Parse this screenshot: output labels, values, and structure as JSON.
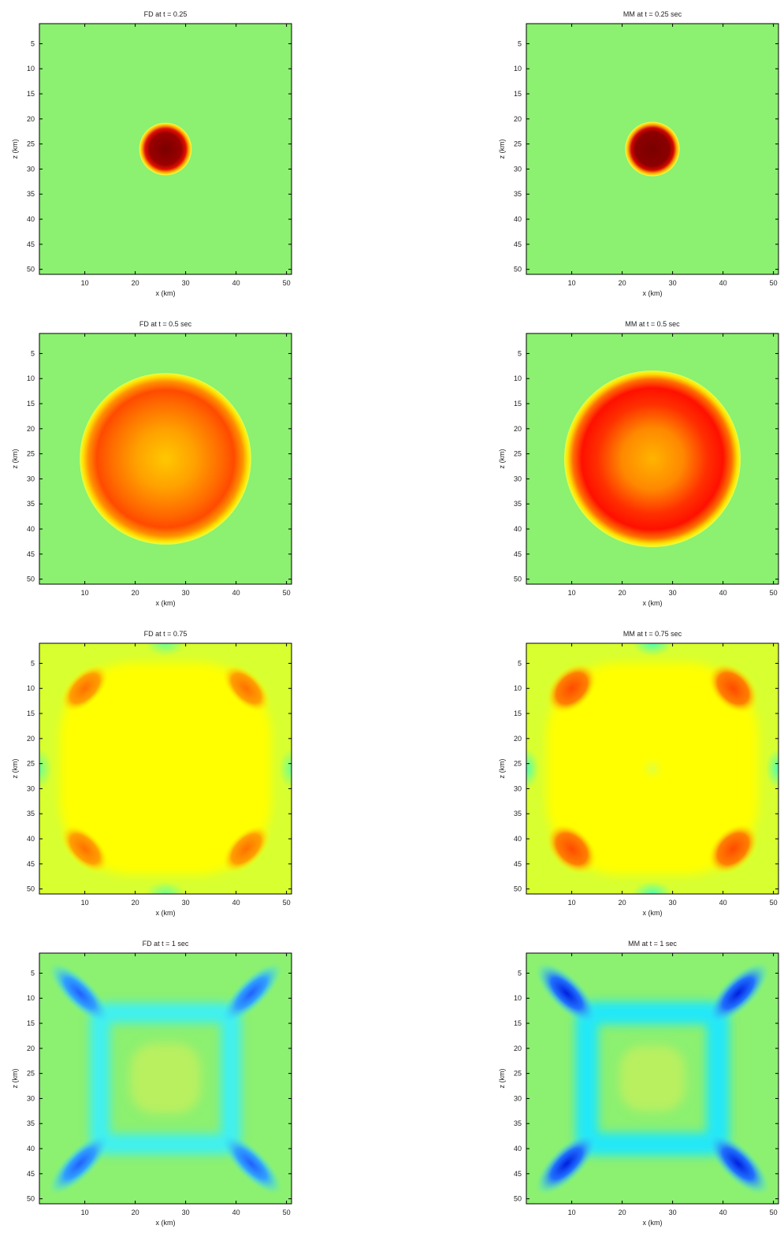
{
  "chart_data": [
    {
      "type": "heatmap",
      "title": "FD at t = 0.25",
      "xlabel": "x (km)",
      "ylabel": "z (km)",
      "xticks": [
        10,
        20,
        30,
        40,
        50
      ],
      "yticks": [
        5,
        10,
        15,
        20,
        25,
        30,
        35,
        40,
        45,
        50
      ],
      "xlim": [
        1,
        51
      ],
      "ylim": [
        1,
        51
      ],
      "blobs": [
        {
          "shape": "circle",
          "cx": 26,
          "cy": 26,
          "r": 5.2,
          "rx": 5.2,
          "ry": 5.2,
          "stops": [
            [
              0,
              "#7a0000"
            ],
            [
              0.6,
              "#9a0000"
            ],
            [
              0.78,
              "#e01000"
            ],
            [
              0.9,
              "#ffb000"
            ],
            [
              1,
              "#ffff40"
            ]
          ]
        }
      ]
    },
    {
      "type": "heatmap",
      "title": "MM at t = 0.25 sec",
      "xlabel": "x (km)",
      "ylabel": "z (km)",
      "xticks": [
        10,
        20,
        30,
        40,
        50
      ],
      "yticks": [
        5,
        10,
        15,
        20,
        25,
        30,
        35,
        40,
        45,
        50
      ],
      "xlim": [
        1,
        51
      ],
      "ylim": [
        1,
        51
      ],
      "blobs": [
        {
          "shape": "circle",
          "cx": 26,
          "cy": 26,
          "r": 5.4,
          "rx": 5.4,
          "ry": 5.4,
          "stops": [
            [
              0,
              "#7a0000"
            ],
            [
              0.62,
              "#8c0000"
            ],
            [
              0.78,
              "#d00800"
            ],
            [
              0.9,
              "#ffb000"
            ],
            [
              1,
              "#ffff40"
            ]
          ]
        }
      ]
    },
    {
      "type": "heatmap",
      "title": "FD at t = 0.5 sec",
      "xlabel": "x (km)",
      "ylabel": "z (km)",
      "xticks": [
        10,
        20,
        30,
        40,
        50
      ],
      "yticks": [
        5,
        10,
        15,
        20,
        25,
        30,
        35,
        40,
        45,
        50
      ],
      "xlim": [
        1,
        51
      ],
      "ylim": [
        1,
        51
      ],
      "blobs": [
        {
          "shape": "circle",
          "cx": 26,
          "cy": 26,
          "r": 17,
          "rx": 17,
          "ry": 17,
          "stops": [
            [
              0,
              "#ffc800"
            ],
            [
              0.35,
              "#ffa000"
            ],
            [
              0.65,
              "#ff6a00"
            ],
            [
              0.8,
              "#ff4a00"
            ],
            [
              0.9,
              "#ff9000"
            ],
            [
              0.96,
              "#ffe000"
            ],
            [
              1,
              "#e8ff40"
            ]
          ]
        }
      ]
    },
    {
      "type": "heatmap",
      "title": "MM at t = 0.5 sec",
      "xlabel": "x (km)",
      "ylabel": "z (km)",
      "xticks": [
        10,
        20,
        30,
        40,
        50
      ],
      "yticks": [
        5,
        10,
        15,
        20,
        25,
        30,
        35,
        40,
        45,
        50
      ],
      "xlim": [
        1,
        51
      ],
      "ylim": [
        1,
        51
      ],
      "blobs": [
        {
          "shape": "circle",
          "cx": 26,
          "cy": 26,
          "r": 17.5,
          "rx": 17.5,
          "ry": 17.5,
          "stops": [
            [
              0,
              "#ffb400"
            ],
            [
              0.35,
              "#ff8800"
            ],
            [
              0.62,
              "#ff3000"
            ],
            [
              0.8,
              "#ff1000"
            ],
            [
              0.9,
              "#ff7000"
            ],
            [
              0.96,
              "#ffe000"
            ],
            [
              1,
              "#e8ff40"
            ]
          ]
        }
      ]
    },
    {
      "type": "heatmap",
      "title": "FD  at t = 0.75",
      "xlabel": "x (km)",
      "ylabel": "z (km)",
      "xticks": [
        10,
        20,
        30,
        40,
        50
      ],
      "yticks": [
        5,
        10,
        15,
        20,
        25,
        30,
        35,
        40,
        45,
        50
      ],
      "xlim": [
        1,
        51
      ],
      "ylim": [
        1,
        51
      ],
      "background": "#d8ff30",
      "blobs": [
        {
          "shape": "rect",
          "cx": 26,
          "cy": 26,
          "w": 42,
          "h": 42,
          "fill": "#ffff00"
        },
        {
          "shape": "circle",
          "cx": 26,
          "cy": 1,
          "rx": 4,
          "ry": 2.5,
          "stops": [
            [
              0,
              "#70ff90"
            ],
            [
              1,
              "#70ff9000"
            ]
          ]
        },
        {
          "shape": "circle",
          "cx": 26,
          "cy": 51,
          "rx": 4,
          "ry": 2.5,
          "stops": [
            [
              0,
              "#70ff90"
            ],
            [
              1,
              "#70ff9000"
            ]
          ]
        },
        {
          "shape": "circle",
          "cx": 1,
          "cy": 26,
          "rx": 2.5,
          "ry": 4,
          "stops": [
            [
              0,
              "#70ff90"
            ],
            [
              1,
              "#70ff9000"
            ]
          ]
        },
        {
          "shape": "circle",
          "cx": 51,
          "cy": 26,
          "rx": 2.5,
          "ry": 4,
          "stops": [
            [
              0,
              "#70ff90"
            ],
            [
              1,
              "#70ff9000"
            ]
          ]
        },
        {
          "shape": "circle",
          "cx": 10,
          "cy": 10,
          "rx": 6,
          "ry": 3.2,
          "rot": -45,
          "stops": [
            [
              0,
              "#ff7000"
            ],
            [
              0.6,
              "#ffa000"
            ],
            [
              1,
              "#ffff0000"
            ]
          ]
        },
        {
          "shape": "circle",
          "cx": 42,
          "cy": 10,
          "rx": 6,
          "ry": 3.2,
          "rot": 45,
          "stops": [
            [
              0,
              "#ff7000"
            ],
            [
              0.6,
              "#ffa000"
            ],
            [
              1,
              "#ffff0000"
            ]
          ]
        },
        {
          "shape": "circle",
          "cx": 10,
          "cy": 42,
          "rx": 6,
          "ry": 3.2,
          "rot": 45,
          "stops": [
            [
              0,
              "#ff7000"
            ],
            [
              0.6,
              "#ffa000"
            ],
            [
              1,
              "#ffff0000"
            ]
          ]
        },
        {
          "shape": "circle",
          "cx": 42,
          "cy": 42,
          "rx": 6,
          "ry": 3.2,
          "rot": -45,
          "stops": [
            [
              0,
              "#ff7000"
            ],
            [
              0.6,
              "#ffa000"
            ],
            [
              1,
              "#ffff0000"
            ]
          ]
        }
      ]
    },
    {
      "type": "heatmap",
      "title": "MM at t = 0.75 sec",
      "xlabel": "x (km)",
      "ylabel": "z (km)",
      "xticks": [
        10,
        20,
        30,
        40,
        50
      ],
      "yticks": [
        5,
        10,
        15,
        20,
        25,
        30,
        35,
        40,
        45,
        50
      ],
      "xlim": [
        1,
        51
      ],
      "ylim": [
        1,
        51
      ],
      "background": "#d8ff30",
      "blobs": [
        {
          "shape": "rect",
          "cx": 26,
          "cy": 26,
          "w": 42,
          "h": 42,
          "fill": "#ffff00"
        },
        {
          "shape": "circle",
          "cx": 26,
          "cy": 1,
          "rx": 4,
          "ry": 2.5,
          "stops": [
            [
              0,
              "#50ffb0"
            ],
            [
              1,
              "#50ffb000"
            ]
          ]
        },
        {
          "shape": "circle",
          "cx": 26,
          "cy": 51,
          "rx": 4,
          "ry": 2.5,
          "stops": [
            [
              0,
              "#50ffb0"
            ],
            [
              1,
              "#50ffb000"
            ]
          ]
        },
        {
          "shape": "circle",
          "cx": 1,
          "cy": 26,
          "rx": 2.5,
          "ry": 4,
          "stops": [
            [
              0,
              "#50ffb0"
            ],
            [
              1,
              "#50ffb000"
            ]
          ]
        },
        {
          "shape": "circle",
          "cx": 51,
          "cy": 26,
          "rx": 2.5,
          "ry": 4,
          "stops": [
            [
              0,
              "#50ffb0"
            ],
            [
              1,
              "#50ffb000"
            ]
          ]
        },
        {
          "shape": "circle",
          "cx": 26,
          "cy": 26,
          "rx": 3,
          "ry": 3,
          "stops": [
            [
              0,
              "#e0ff40"
            ],
            [
              1,
              "#ffff0000"
            ]
          ]
        },
        {
          "shape": "circle",
          "cx": 10,
          "cy": 10,
          "rx": 6,
          "ry": 4,
          "rot": -45,
          "stops": [
            [
              0,
              "#ff4a00"
            ],
            [
              0.6,
              "#ff8000"
            ],
            [
              1,
              "#ffff0000"
            ]
          ]
        },
        {
          "shape": "circle",
          "cx": 42,
          "cy": 10,
          "rx": 6,
          "ry": 4,
          "rot": 45,
          "stops": [
            [
              0,
              "#ff4a00"
            ],
            [
              0.6,
              "#ff8000"
            ],
            [
              1,
              "#ffff0000"
            ]
          ]
        },
        {
          "shape": "circle",
          "cx": 10,
          "cy": 42,
          "rx": 6,
          "ry": 4,
          "rot": 45,
          "stops": [
            [
              0,
              "#ff4a00"
            ],
            [
              0.6,
              "#ff8000"
            ],
            [
              1,
              "#ffff0000"
            ]
          ]
        },
        {
          "shape": "circle",
          "cx": 42,
          "cy": 42,
          "rx": 6,
          "ry": 4,
          "rot": -45,
          "stops": [
            [
              0,
              "#ff4a00"
            ],
            [
              0.6,
              "#ff8000"
            ],
            [
              1,
              "#ffff0000"
            ]
          ]
        }
      ]
    },
    {
      "type": "heatmap",
      "title": "FD at t = 1 sec",
      "xlabel": "x (km)",
      "ylabel": "z (km)",
      "xticks": [
        10,
        20,
        30,
        40,
        50
      ],
      "yticks": [
        5,
        10,
        15,
        20,
        25,
        30,
        35,
        40,
        45,
        50
      ],
      "xlim": [
        1,
        51
      ],
      "ylim": [
        1,
        51
      ],
      "background": "#8cf070",
      "blobs": [
        {
          "shape": "frame",
          "cx": 26,
          "cy": 26,
          "w": 26,
          "h": 26,
          "stroke": "#40f0f0",
          "width": 4
        },
        {
          "shape": "rect",
          "cx": 26,
          "cy": 26,
          "w": 14,
          "h": 14,
          "fill": "#b8f060"
        },
        {
          "shape": "circle",
          "cx": 9,
          "cy": 9,
          "rx": 8,
          "ry": 2.8,
          "rot": 45,
          "stops": [
            [
              0,
              "#2060ff"
            ],
            [
              0.5,
              "#30a0ff"
            ],
            [
              1,
              "#40f0f000"
            ]
          ]
        },
        {
          "shape": "circle",
          "cx": 43,
          "cy": 9,
          "rx": 8,
          "ry": 2.8,
          "rot": -45,
          "stops": [
            [
              0,
              "#2060ff"
            ],
            [
              0.5,
              "#30a0ff"
            ],
            [
              1,
              "#40f0f000"
            ]
          ]
        },
        {
          "shape": "circle",
          "cx": 9,
          "cy": 43,
          "rx": 8,
          "ry": 2.8,
          "rot": -45,
          "stops": [
            [
              0,
              "#2060ff"
            ],
            [
              0.5,
              "#30a0ff"
            ],
            [
              1,
              "#40f0f000"
            ]
          ]
        },
        {
          "shape": "circle",
          "cx": 43,
          "cy": 43,
          "rx": 8,
          "ry": 2.8,
          "rot": 45,
          "stops": [
            [
              0,
              "#2060ff"
            ],
            [
              0.5,
              "#30a0ff"
            ],
            [
              1,
              "#40f0f000"
            ]
          ]
        }
      ]
    },
    {
      "type": "heatmap",
      "title": "MM at t = 1 sec",
      "xlabel": "x (km)",
      "ylabel": "z (km)",
      "xticks": [
        10,
        20,
        30,
        40,
        50
      ],
      "yticks": [
        5,
        10,
        15,
        20,
        25,
        30,
        35,
        40,
        45,
        50
      ],
      "xlim": [
        1,
        51
      ],
      "ylim": [
        1,
        51
      ],
      "background": "#8cf070",
      "blobs": [
        {
          "shape": "frame",
          "cx": 26,
          "cy": 26,
          "w": 26,
          "h": 26,
          "stroke": "#20e8f8",
          "width": 4.5
        },
        {
          "shape": "rect",
          "cx": 26,
          "cy": 26,
          "w": 13,
          "h": 13,
          "fill": "#b8f060"
        },
        {
          "shape": "circle",
          "cx": 9,
          "cy": 9,
          "rx": 8,
          "ry": 3.2,
          "rot": 45,
          "stops": [
            [
              0,
              "#0020e0"
            ],
            [
              0.5,
              "#2070ff"
            ],
            [
              1,
              "#40f0f000"
            ]
          ]
        },
        {
          "shape": "circle",
          "cx": 43,
          "cy": 9,
          "rx": 8,
          "ry": 3.2,
          "rot": -45,
          "stops": [
            [
              0,
              "#0020e0"
            ],
            [
              0.5,
              "#2070ff"
            ],
            [
              1,
              "#40f0f000"
            ]
          ]
        },
        {
          "shape": "circle",
          "cx": 9,
          "cy": 43,
          "rx": 8,
          "ry": 3.2,
          "rot": -45,
          "stops": [
            [
              0,
              "#0020e0"
            ],
            [
              0.5,
              "#2070ff"
            ],
            [
              1,
              "#40f0f000"
            ]
          ]
        },
        {
          "shape": "circle",
          "cx": 43,
          "cy": 43,
          "rx": 8,
          "ry": 3.2,
          "rot": 45,
          "stops": [
            [
              0,
              "#0020e0"
            ],
            [
              0.5,
              "#2070ff"
            ],
            [
              1,
              "#40f0f000"
            ]
          ]
        }
      ]
    }
  ],
  "colors": {
    "background": "#8cf070",
    "axis": "#000000"
  }
}
